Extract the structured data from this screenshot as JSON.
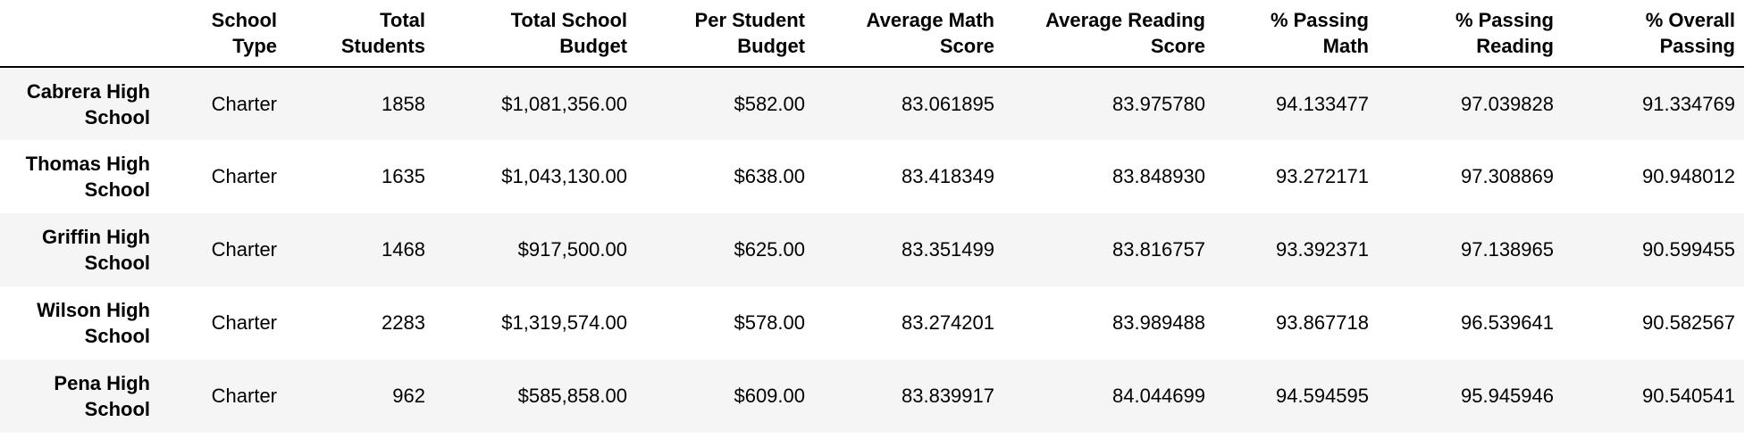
{
  "table": {
    "columns": [
      [
        "School",
        "Type"
      ],
      [
        "Total",
        "Students"
      ],
      [
        "Total School",
        "Budget"
      ],
      [
        "Per Student",
        "Budget"
      ],
      [
        "Average Math",
        "Score"
      ],
      [
        "Average Reading",
        "Score"
      ],
      [
        "% Passing",
        "Math"
      ],
      [
        "% Passing",
        "Reading"
      ],
      [
        "% Overall",
        "Passing"
      ]
    ],
    "rows": [
      {
        "name": "Cabrera High School",
        "cells": [
          "Charter",
          "1858",
          "$1,081,356.00",
          "$582.00",
          "83.061895",
          "83.975780",
          "94.133477",
          "97.039828",
          "91.334769"
        ]
      },
      {
        "name": "Thomas High School",
        "cells": [
          "Charter",
          "1635",
          "$1,043,130.00",
          "$638.00",
          "83.418349",
          "83.848930",
          "93.272171",
          "97.308869",
          "90.948012"
        ]
      },
      {
        "name": "Griffin High School",
        "cells": [
          "Charter",
          "1468",
          "$917,500.00",
          "$625.00",
          "83.351499",
          "83.816757",
          "93.392371",
          "97.138965",
          "90.599455"
        ]
      },
      {
        "name": "Wilson High School",
        "cells": [
          "Charter",
          "2283",
          "$1,319,574.00",
          "$578.00",
          "83.274201",
          "83.989488",
          "93.867718",
          "96.539641",
          "90.582567"
        ]
      },
      {
        "name": "Pena High School",
        "cells": [
          "Charter",
          "962",
          "$585,858.00",
          "$609.00",
          "83.839917",
          "84.044699",
          "94.594595",
          "95.945946",
          "90.540541"
        ]
      }
    ]
  }
}
